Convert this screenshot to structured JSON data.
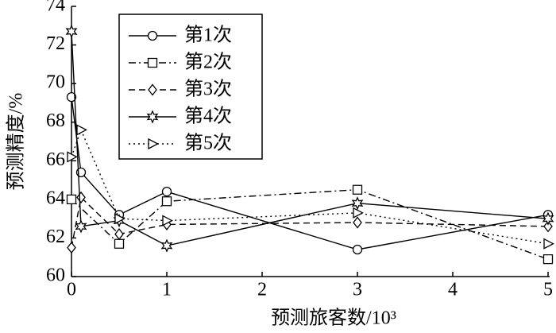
{
  "chart_data": {
    "type": "line",
    "x_label": "预测旅客数/10³",
    "y_label": "预测精度/%",
    "xlim": [
      0,
      5
    ],
    "ylim": [
      60,
      74
    ],
    "xticks": [
      0,
      1,
      2,
      3,
      4,
      5
    ],
    "yticks": [
      60,
      62,
      64,
      66,
      68,
      70,
      72,
      74
    ],
    "legend": "upper-left",
    "series": [
      {
        "name": "第1次",
        "color": "#000000",
        "marker": "circle",
        "dash": "solid",
        "x": [
          0,
          0.1,
          0.5,
          1,
          3,
          5
        ],
        "values": [
          69.3,
          65.4,
          63.2,
          64.4,
          61.4,
          63.2
        ]
      },
      {
        "name": "第2次",
        "color": "#000000",
        "marker": "square",
        "dash": "dashdot",
        "x": [
          0,
          0.5,
          1,
          3,
          5
        ],
        "values": [
          64.0,
          61.7,
          63.9,
          64.5,
          60.9
        ]
      },
      {
        "name": "第3次",
        "color": "#000000",
        "marker": "diamond",
        "dash": "dashed",
        "x": [
          0,
          0.1,
          0.5,
          1,
          3,
          5
        ],
        "values": [
          61.5,
          64.1,
          62.2,
          62.7,
          62.8,
          62.6
        ]
      },
      {
        "name": "第4次",
        "color": "#000000",
        "marker": "star",
        "dash": "solid",
        "x": [
          0,
          0.1,
          0.5,
          1,
          3,
          5
        ],
        "values": [
          72.7,
          62.6,
          62.9,
          61.6,
          63.8,
          63.0
        ]
      },
      {
        "name": "第5次",
        "color": "#000000",
        "marker": "triangle",
        "dash": "dotted",
        "x": [
          0,
          0.1,
          0.5,
          1,
          3,
          5
        ],
        "values": [
          66.2,
          67.6,
          63.0,
          62.9,
          63.3,
          61.7
        ]
      }
    ]
  }
}
